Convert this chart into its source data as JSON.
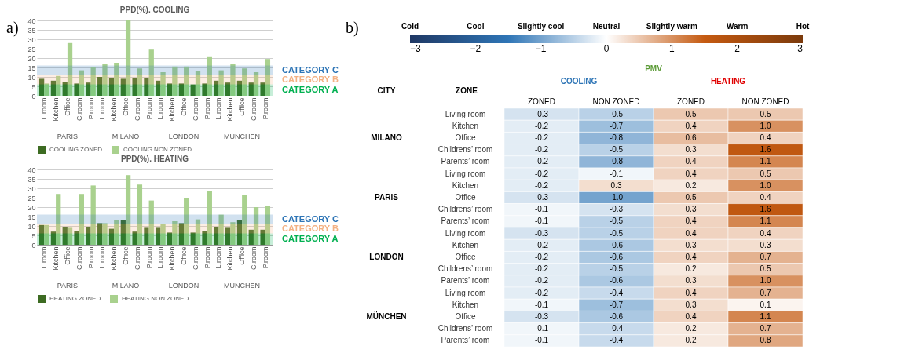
{
  "chart_data": [
    {
      "type": "other",
      "annotations": [
        "a)"
      ]
    },
    {
      "type": "bar",
      "title": "PPD(%). COOLING",
      "categories": [
        "L.room",
        "Kitchen",
        "Office",
        "C.room",
        "P.room",
        "L.room",
        "Kitchen",
        "Office",
        "C.room",
        "P.room",
        "L.room",
        "Kitchen",
        "Office",
        "C.room",
        "P.room",
        "L.room",
        "Kitchen",
        "Office",
        "C.room",
        "P.room"
      ],
      "series": [
        {
          "name": "COOLING ZONED",
          "color": "#3d6b22",
          "values": [
            9,
            8,
            7.5,
            6.5,
            7,
            10,
            9.5,
            9,
            9.5,
            9.5,
            8,
            6.5,
            6.5,
            6,
            6.5,
            8,
            7,
            8,
            7,
            7
          ]
        },
        {
          "name": "COOLING NON ZONED",
          "color": "#a9d18e",
          "values": [
            6.5,
            10.5,
            28,
            13.5,
            15,
            17,
            17.5,
            40,
            14.5,
            24.5,
            12.5,
            15.5,
            15.5,
            13,
            20.5,
            13.5,
            17,
            14.5,
            12.5,
            19.5
          ]
        }
      ],
      "ylim": [
        0,
        40
      ],
      "yticks": [
        0,
        5,
        10,
        15,
        20,
        25,
        30,
        35,
        40
      ],
      "grid": "y",
      "legend": "bottom",
      "bands": [
        {
          "axis": "y",
          "from": 0,
          "to": 6,
          "label": "CATEGORY A",
          "color": "#00b050"
        },
        {
          "axis": "y",
          "from": 6,
          "to": 11,
          "label": "CATEGORY B",
          "color": "#f4b183"
        },
        {
          "axis": "y",
          "from": 11,
          "to": 16,
          "label": "CATEGORY C",
          "color": "#2e75b6"
        }
      ],
      "annotations": [
        "PARIS",
        "MILANO",
        "LONDON",
        "MÜNCHEN"
      ]
    },
    {
      "type": "bar",
      "title": "PPD(%). HEATING",
      "categories": [
        "L.room",
        "Kitchen",
        "Office",
        "C.room",
        "P.room",
        "L.room",
        "Kitchen",
        "Office",
        "C.room",
        "P.room",
        "L.room",
        "Kitchen",
        "Office",
        "C.room",
        "P.room",
        "L.room",
        "Kitchen",
        "Office",
        "C.room",
        "P.room"
      ],
      "series": [
        {
          "name": "HEATING ZONED",
          "color": "#3d6b22",
          "values": [
            10.5,
            7,
            9.5,
            7.5,
            9.5,
            11.5,
            8.5,
            13,
            7,
            9,
            9,
            6.5,
            11.5,
            6.5,
            7.5,
            9.5,
            9,
            13,
            8,
            8
          ]
        },
        {
          "name": "HEATING NON ZONED",
          "color": "#a9d18e",
          "values": [
            10.5,
            27,
            9,
            27,
            31.5,
            11.5,
            13,
            37,
            32,
            23.5,
            11,
            12.5,
            25,
            13.5,
            28.5,
            16,
            12,
            26.5,
            20,
            20.5
          ]
        }
      ],
      "ylim": [
        0,
        40
      ],
      "yticks": [
        0,
        5,
        10,
        15,
        20,
        25,
        30,
        35,
        40
      ],
      "grid": "y",
      "legend": "bottom",
      "bands": [
        {
          "axis": "y",
          "from": 0,
          "to": 6,
          "label": "CATEGORY A",
          "color": "#00b050"
        },
        {
          "axis": "y",
          "from": 6,
          "to": 11,
          "label": "CATEGORY B",
          "color": "#f4b183"
        },
        {
          "axis": "y",
          "from": 11,
          "to": 16,
          "label": "CATEGORY C",
          "color": "#2e75b6"
        }
      ],
      "annotations": [
        "PARIS",
        "MILANO",
        "LONDON",
        "MÜNCHEN"
      ]
    },
    {
      "type": "other",
      "annotations": [
        "b)"
      ]
    },
    {
      "type": "heatmap",
      "categories": [
        "ZONED",
        "NON ZONED",
        "ZONED",
        "NON ZONED"
      ],
      "y_categories": [
        "Living room",
        "Kitchen",
        "Office",
        "Childrens’ room",
        "Parents’ room",
        "Living room",
        "Kitchen",
        "Office",
        "Childrens’ room",
        "Parents’ room",
        "Living room",
        "Kitchen",
        "Office",
        "Childrens’ room",
        "Parents’ room",
        "Living room",
        "Kitchen",
        "Office",
        "Childrens’ room",
        "Parents’ room"
      ],
      "cells": [
        [
          -0.3,
          -0.5,
          0.5,
          0.5
        ],
        [
          -0.2,
          -0.7,
          0.4,
          1.0
        ],
        [
          -0.2,
          -0.8,
          0.6,
          0.4
        ],
        [
          -0.2,
          -0.5,
          0.3,
          1.6
        ],
        [
          -0.2,
          -0.8,
          0.4,
          1.1
        ],
        [
          -0.2,
          -0.1,
          0.4,
          0.5
        ],
        [
          -0.2,
          0.3,
          0.2,
          1.0
        ],
        [
          -0.3,
          -1.0,
          0.5,
          0.4
        ],
        [
          -0.1,
          -0.3,
          0.3,
          1.6
        ],
        [
          -0.1,
          -0.5,
          0.4,
          1.1
        ],
        [
          -0.3,
          -0.5,
          0.4,
          0.4
        ],
        [
          -0.2,
          -0.6,
          0.3,
          0.3
        ],
        [
          -0.2,
          -0.6,
          0.4,
          0.7
        ],
        [
          -0.2,
          -0.5,
          0.2,
          0.5
        ],
        [
          -0.2,
          -0.6,
          0.3,
          1.0
        ],
        [
          -0.2,
          -0.4,
          0.4,
          0.7
        ],
        [
          -0.1,
          -0.7,
          0.3,
          0.1
        ],
        [
          -0.3,
          -0.6,
          0.4,
          1.1
        ],
        [
          -0.1,
          -0.4,
          0.2,
          0.7
        ],
        [
          -0.1,
          -0.4,
          0.2,
          0.8
        ]
      ],
      "cell_labels": [
        [
          "-0.3",
          "-0.5",
          "0.5",
          "0.5"
        ],
        [
          "-0.2",
          "-0.7",
          "0.4",
          "1.0"
        ],
        [
          "-0.2",
          "-0.8",
          "0.6",
          "0.4"
        ],
        [
          "-0.2",
          "-0.5",
          "0.3",
          "1.6"
        ],
        [
          "-0.2",
          "-0.8",
          "0.4",
          "1.1"
        ],
        [
          "-0.2",
          "-0.1",
          "0.4",
          "0.5"
        ],
        [
          "-0.2",
          "0.3",
          "0.2",
          "1.0"
        ],
        [
          "-0.3",
          "-1.0",
          "0.5",
          "0.4"
        ],
        [
          "-0.1",
          "-0.3",
          "0.3",
          "1.6"
        ],
        [
          "-0.1",
          "-0.5",
          "0.4",
          "1.1"
        ],
        [
          "-0.3",
          "-0.5",
          "0.4",
          "0.4"
        ],
        [
          "-0.2",
          "-0.6",
          "0.3",
          "0.3"
        ],
        [
          "-0.2",
          "-0.6",
          "0.4",
          "0.7"
        ],
        [
          "-0.2",
          "-0.5",
          "0.2",
          "0.5"
        ],
        [
          "-0.2",
          "-0.6",
          "0.3",
          "1.0"
        ],
        [
          "-0.2",
          "-0.4",
          "0.4",
          "0.7"
        ],
        [
          "-0.1",
          "-0.7",
          "0.3",
          "0.1"
        ],
        [
          "-0.3",
          "-0.6",
          "0.4",
          "1.1"
        ],
        [
          "-0.1",
          "-0.4",
          "0.2",
          "0.7"
        ],
        [
          "-0.1",
          "-0.4",
          "0.2",
          "0.8"
        ]
      ],
      "clim": [
        -3,
        3
      ],
      "cticks": [
        -3,
        -2,
        -1,
        0,
        1,
        2,
        3
      ],
      "data_labels": true,
      "annotations": [
        "Cold",
        "Cool",
        "Slightly cool",
        "Neutral",
        "Slightly warm",
        "Warm",
        "Hot",
        "CITY",
        "ZONE",
        "PMV",
        "COOLING",
        "HEATING",
        "MILANO",
        "PARIS",
        "LONDON",
        "MÜNCHEN"
      ]
    }
  ]
}
